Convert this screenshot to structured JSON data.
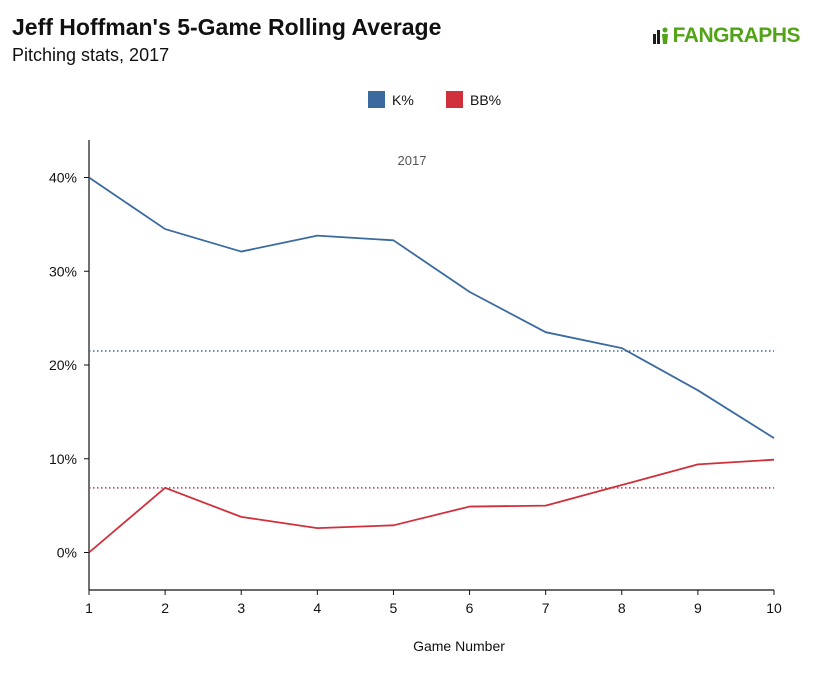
{
  "header": {
    "title": "Jeff Hoffman's 5-Game Rolling Average",
    "subtitle": "Pitching stats, 2017"
  },
  "logo": {
    "text_a": "FAN",
    "text_b": "GRAPHS",
    "icon": "fangraphs-logo-icon",
    "color": "#53a318"
  },
  "chart_data": {
    "type": "line",
    "annotation": "2017",
    "xlabel": "Game Number",
    "ylabel": "",
    "x": [
      1,
      2,
      3,
      4,
      5,
      6,
      7,
      8,
      9,
      10
    ],
    "xlim": [
      1,
      10
    ],
    "ylim": [
      -4,
      44
    ],
    "yticks": [
      0,
      10,
      20,
      30,
      40
    ],
    "ytick_labels": [
      "0%",
      "10%",
      "20%",
      "30%",
      "40%"
    ],
    "xtick_labels": [
      "1",
      "2",
      "3",
      "4",
      "5",
      "6",
      "7",
      "8",
      "9",
      "10"
    ],
    "grid": false,
    "legend_position": "top-center",
    "series": [
      {
        "name": "K%",
        "color": "#3a6a9e",
        "values": [
          40.0,
          34.5,
          32.1,
          33.8,
          33.3,
          27.8,
          23.5,
          21.8,
          17.3,
          12.2
        ],
        "reference_line": 21.5
      },
      {
        "name": "BB%",
        "color": "#d0303b",
        "values": [
          0.0,
          6.9,
          3.8,
          2.6,
          2.9,
          4.9,
          5.0,
          7.2,
          9.4,
          9.9
        ],
        "reference_line": 6.9
      }
    ]
  }
}
